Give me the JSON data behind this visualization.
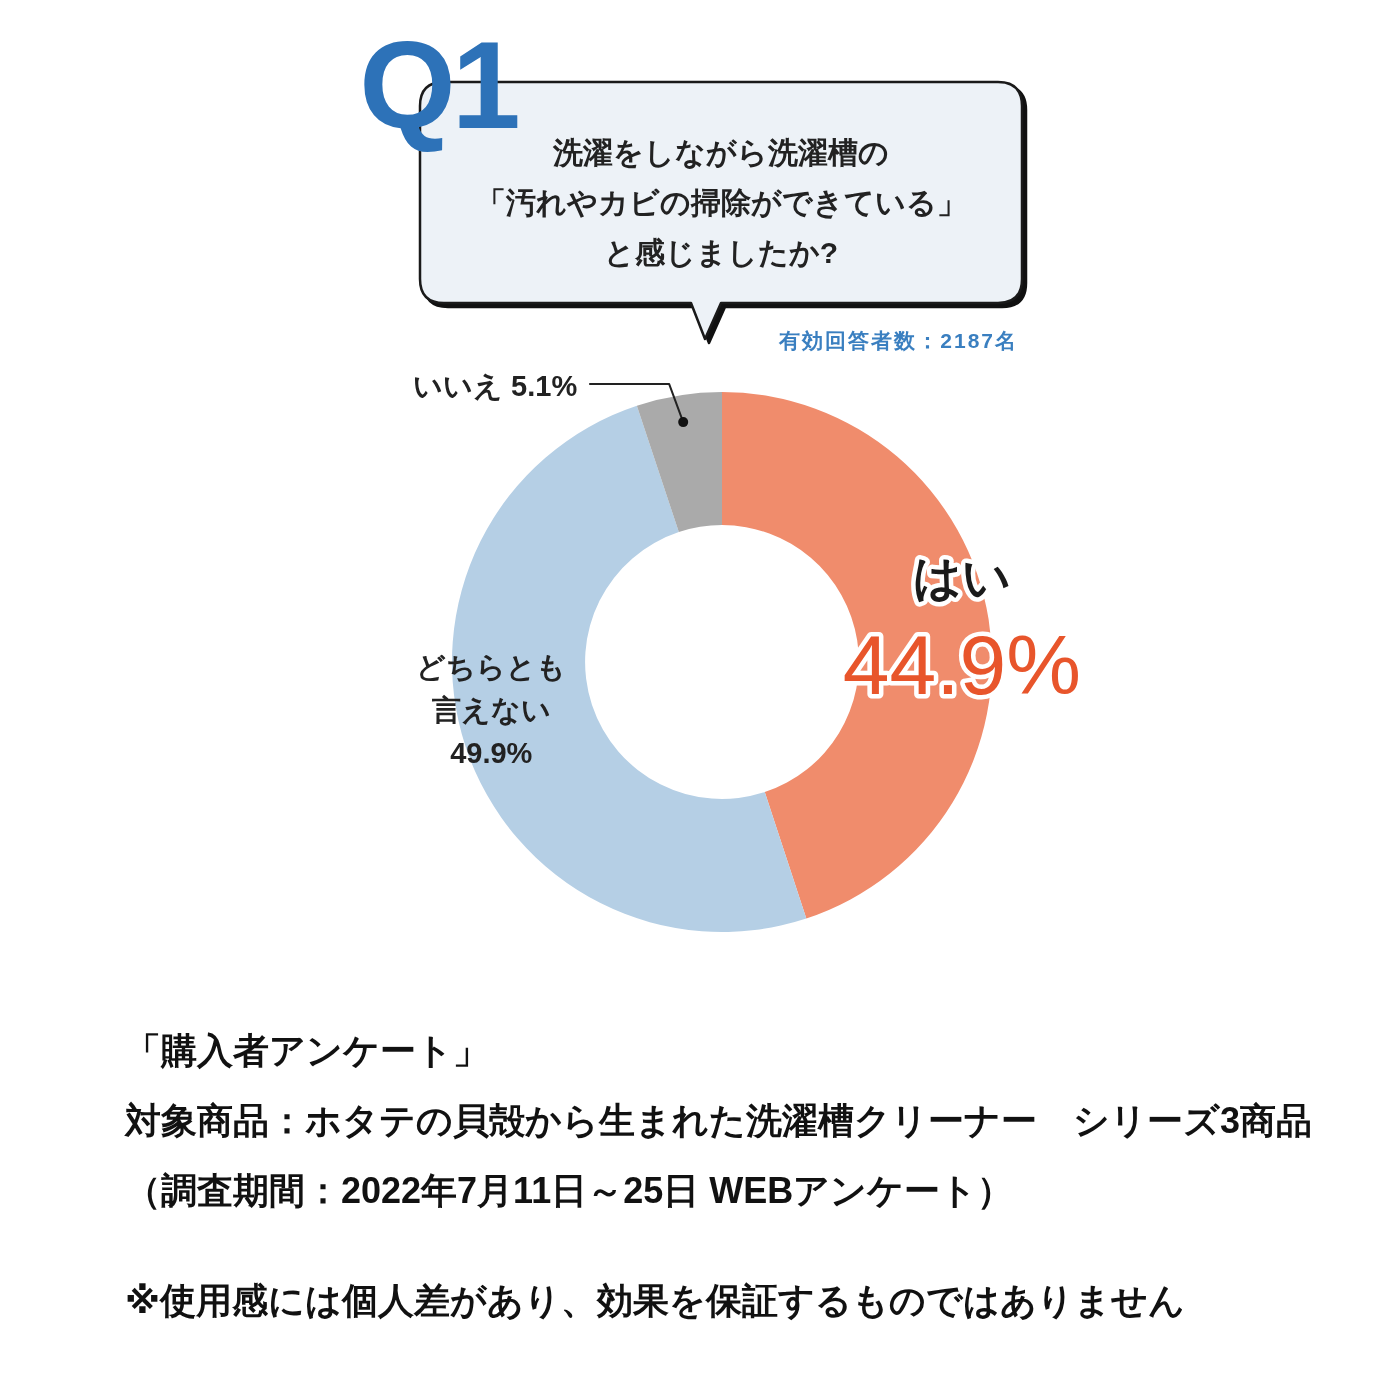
{
  "chart_data": {
    "type": "donut",
    "title": "洗濯をしながら洗濯槽の「汚れやカビの掃除ができている」と感じましたか?",
    "categories": [
      "はい",
      "どちらとも言えない",
      "いいえ"
    ],
    "values": [
      44.9,
      49.9,
      5.1
    ],
    "colors": [
      "#f08c6c",
      "#b5cfe5",
      "#aaaaaa"
    ],
    "value_labels": [
      "44.9%",
      "49.9%",
      "5.1%"
    ],
    "annotations": [
      "Q1",
      "有効回答者数：2187名",
      "「購入者アンケート」",
      "対象商品：ホタテの貝殻から生まれた洗濯槽クリーナー　シリーズ3商品",
      "（調査期間：2022年7月11日～25日 WEBアンケート）",
      "※使用感には個人差があり、効果を保証するものではありません"
    ]
  }
}
